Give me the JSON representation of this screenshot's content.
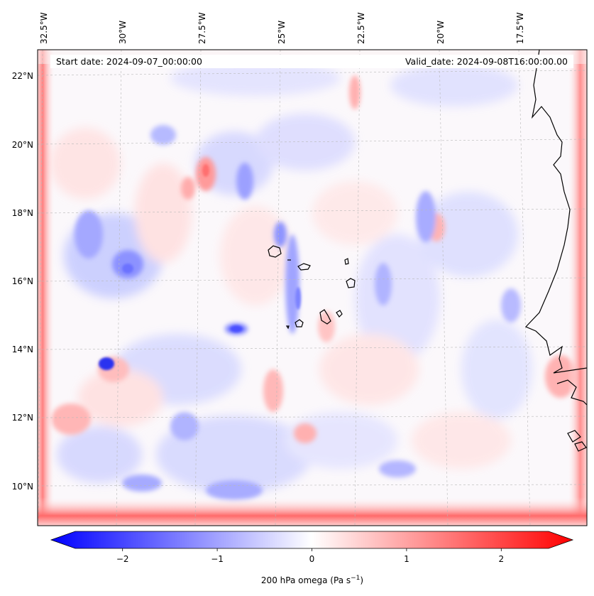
{
  "header": {
    "start_date": "Start date: 2024-09-07_00:00:00",
    "valid_date": "Valid_date: 2024-09-08T16:00:00.00"
  },
  "map": {
    "lon_labels": [
      "32.5°W",
      "30°W",
      "27.5°W",
      "25°W",
      "22.5°W",
      "20°W",
      "17.5°W"
    ],
    "lat_labels": [
      "22°N",
      "20°N",
      "18°N",
      "16°N",
      "14°N",
      "12°N",
      "10°N"
    ],
    "field": "200 hPa omega",
    "colors": {
      "negative": "#0000ff",
      "zero": "#ffffff",
      "positive": "#ff0000",
      "coast": "#000000"
    }
  },
  "colorbar": {
    "label_main": "200 hPa omega (Pa s",
    "label_exp": "−1",
    "label_close": ")",
    "min": -2.6,
    "max": 2.6,
    "ticks": [
      {
        "value": -2,
        "label": "−2"
      },
      {
        "value": -1,
        "label": "−1"
      },
      {
        "value": 0,
        "label": "0"
      },
      {
        "value": 1,
        "label": "1"
      },
      {
        "value": 2,
        "label": "2"
      }
    ]
  }
}
